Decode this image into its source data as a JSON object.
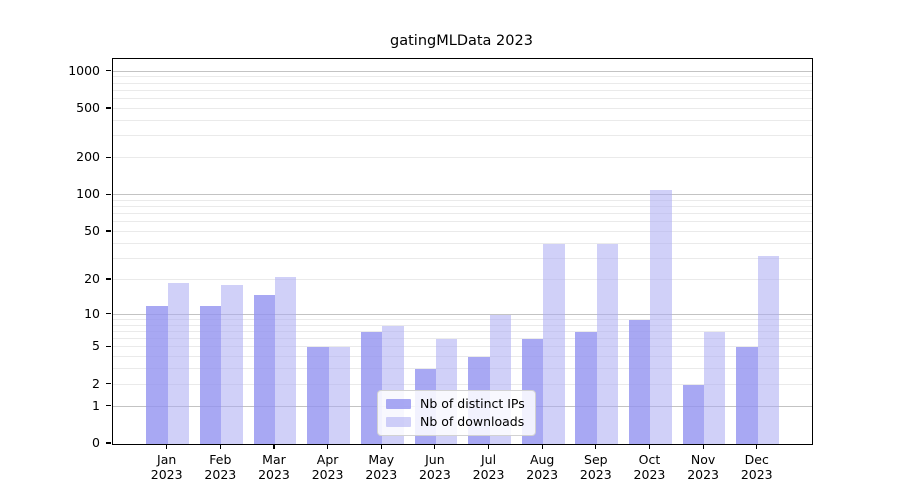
{
  "chart_data": {
    "type": "bar",
    "title": "gatingMLData 2023",
    "categories": [
      "Jan 2023",
      "Feb 2023",
      "Mar 2023",
      "Apr 2023",
      "May 2023",
      "Jun 2023",
      "Jul 2023",
      "Aug 2023",
      "Sep 2023",
      "Oct 2023",
      "Nov 2023",
      "Dec 2023"
    ],
    "months": [
      "Jan",
      "Feb",
      "Mar",
      "Apr",
      "May",
      "Jun",
      "Jul",
      "Aug",
      "Sep",
      "Oct",
      "Nov",
      "Dec"
    ],
    "year": "2023",
    "series": [
      {
        "name": "Nb of distinct IPs",
        "color": "rgba(146,146,240,0.8)",
        "values": [
          12,
          12,
          15,
          5,
          7,
          3,
          4,
          6,
          7,
          9,
          2,
          5
        ]
      },
      {
        "name": "Nb of downloads",
        "color": "rgba(170,170,242,0.55)",
        "values": [
          19,
          18,
          21,
          5,
          8,
          6,
          10,
          40,
          40,
          110,
          7,
          32
        ]
      }
    ],
    "y_ticks": [
      0,
      1,
      2,
      5,
      10,
      20,
      50,
      100,
      200,
      500,
      1000
    ],
    "yscale": "log1p",
    "ylim": [
      0,
      1264
    ],
    "grid": "horizontal major lines at 1,10,100,1000; minor log lines at 2-9, 20-90, 200-900",
    "legend_position": "lower center",
    "colors": {
      "major_gridline": "#c3c3c3",
      "minor_gridline": "#eaeaea",
      "axis": "#000000",
      "background": "#ffffff"
    }
  }
}
